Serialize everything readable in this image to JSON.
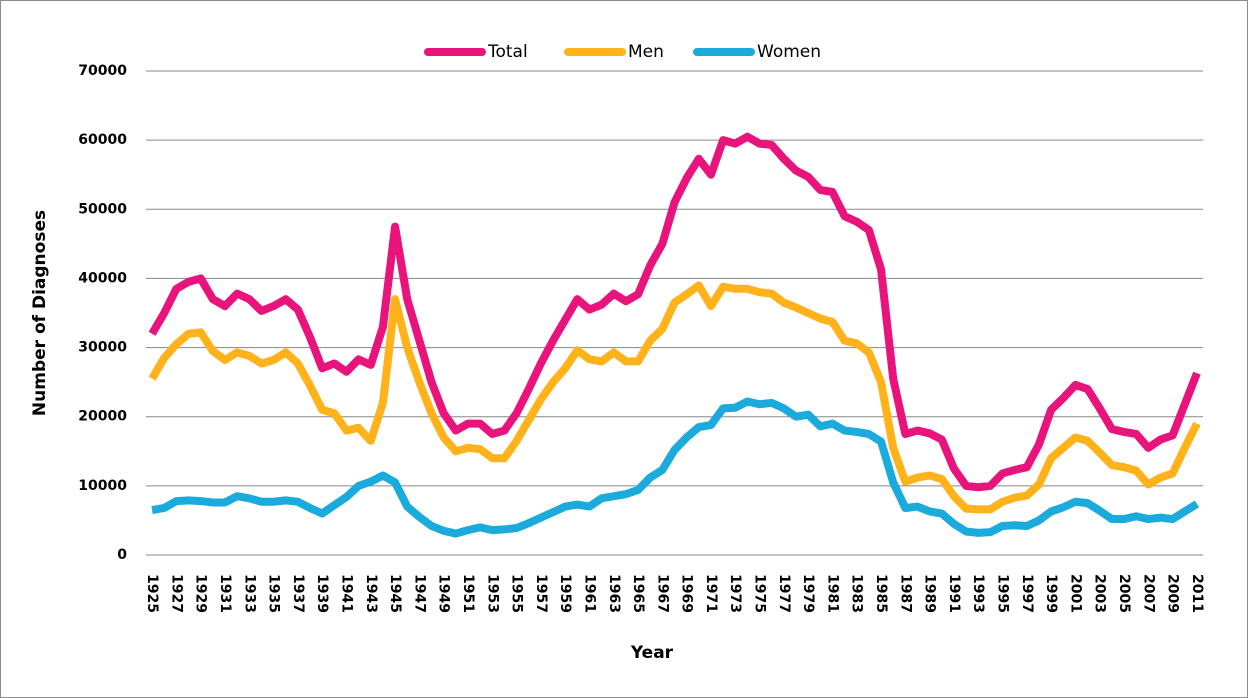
{
  "chart_data": {
    "type": "line",
    "x_label": "Year",
    "y_label": "Number of Diagnoses",
    "categories": [
      "1925",
      null,
      "1927",
      null,
      "1929",
      null,
      "1931",
      null,
      "1933",
      null,
      "1935",
      null,
      "1937",
      null,
      "1939",
      null,
      "1941",
      null,
      "1943",
      null,
      "1945",
      null,
      "1947",
      null,
      "1949",
      null,
      "1951",
      null,
      "1953",
      null,
      "1955",
      null,
      "1957",
      null,
      "1959",
      null,
      "1961",
      null,
      "1963",
      null,
      "1965",
      null,
      "1967",
      null,
      "1969",
      null,
      "1971",
      null,
      "1973",
      null,
      "1975",
      null,
      "1977",
      null,
      "1979",
      null,
      "1981",
      null,
      "1983",
      null,
      "1985",
      null,
      "1987",
      null,
      "1989",
      null,
      "1991",
      null,
      "1993",
      null,
      "1995",
      null,
      "1997",
      null,
      "1999",
      null,
      "2001",
      null,
      "2003",
      null,
      "2005",
      null,
      "2007",
      null,
      "2009",
      null,
      "2011"
    ],
    "series": [
      {
        "name": "Total",
        "color": "#e8147c",
        "values": [
          32000,
          35000,
          38500,
          39500,
          40000,
          37000,
          36000,
          37800,
          37000,
          35300,
          36000,
          37000,
          35500,
          31500,
          27000,
          27700,
          26500,
          28300,
          27500,
          33000,
          47500,
          37000,
          31000,
          25000,
          20500,
          18000,
          19000,
          19000,
          17500,
          18000,
          20500,
          24000,
          27700,
          31000,
          34000,
          37000,
          35500,
          36200,
          37800,
          36700,
          37700,
          41900,
          45000,
          51000,
          54500,
          57300,
          55000,
          60000,
          59500,
          60500,
          59500,
          59300,
          57300,
          55600,
          54700,
          52800,
          52500,
          49000,
          48200,
          47000,
          41300,
          25500,
          17500,
          18000,
          17600,
          16700,
          12500,
          10000,
          9800,
          10000,
          11800,
          12300,
          12700,
          16000,
          21000,
          22700,
          24600,
          24000,
          21200,
          18200,
          17800,
          17500,
          15500,
          16700,
          17300,
          21800,
          26300
        ]
      },
      {
        "name": "Men",
        "color": "#ffb21a",
        "values": [
          25500,
          28500,
          30500,
          32000,
          32200,
          29500,
          28200,
          29300,
          28800,
          27700,
          28200,
          29300,
          27700,
          24500,
          21000,
          20500,
          18000,
          18400,
          16500,
          22000,
          37000,
          30000,
          25000,
          20500,
          17000,
          15000,
          15500,
          15300,
          14000,
          14000,
          16500,
          19500,
          22500,
          25000,
          27000,
          29600,
          28300,
          28000,
          29300,
          28000,
          28000,
          31000,
          32700,
          36500,
          37700,
          39000,
          36000,
          38800,
          38500,
          38500,
          38000,
          37800,
          36500,
          35800,
          35000,
          34200,
          33700,
          31000,
          30600,
          29300,
          25000,
          15500,
          10600,
          11200,
          11500,
          11000,
          8500,
          6700,
          6600,
          6600,
          7700,
          8300,
          8600,
          10200,
          14000,
          15500,
          17000,
          16500,
          14800,
          13000,
          12700,
          12200,
          10200,
          11200,
          11800,
          15500,
          19000
        ]
      },
      {
        "name": "Women",
        "color": "#1aabdc",
        "values": [
          6500,
          6800,
          7800,
          7900,
          7800,
          7600,
          7600,
          8500,
          8200,
          7700,
          7700,
          7900,
          7700,
          6800,
          6000,
          7200,
          8400,
          10000,
          10600,
          11500,
          10500,
          7000,
          5500,
          4200,
          3500,
          3100,
          3600,
          4000,
          3600,
          3700,
          3900,
          4600,
          5400,
          6200,
          7000,
          7300,
          7000,
          8200,
          8500,
          8800,
          9400,
          11200,
          12300,
          15200,
          17000,
          18500,
          18800,
          21200,
          21300,
          22200,
          21800,
          22000,
          21200,
          20000,
          20300,
          18600,
          19000,
          18000,
          17800,
          17500,
          16400,
          10500,
          6800,
          7000,
          6300,
          6000,
          4500,
          3400,
          3200,
          3300,
          4200,
          4300,
          4200,
          5000,
          6300,
          6900,
          7700,
          7500,
          6400,
          5200,
          5200,
          5600,
          5200,
          5400,
          5200,
          6300,
          7400
        ]
      }
    ],
    "ylim": [
      0,
      70000
    ],
    "yticks": [
      0,
      10000,
      20000,
      30000,
      40000,
      50000,
      60000,
      70000
    ],
    "grid": true,
    "legend": "top"
  }
}
